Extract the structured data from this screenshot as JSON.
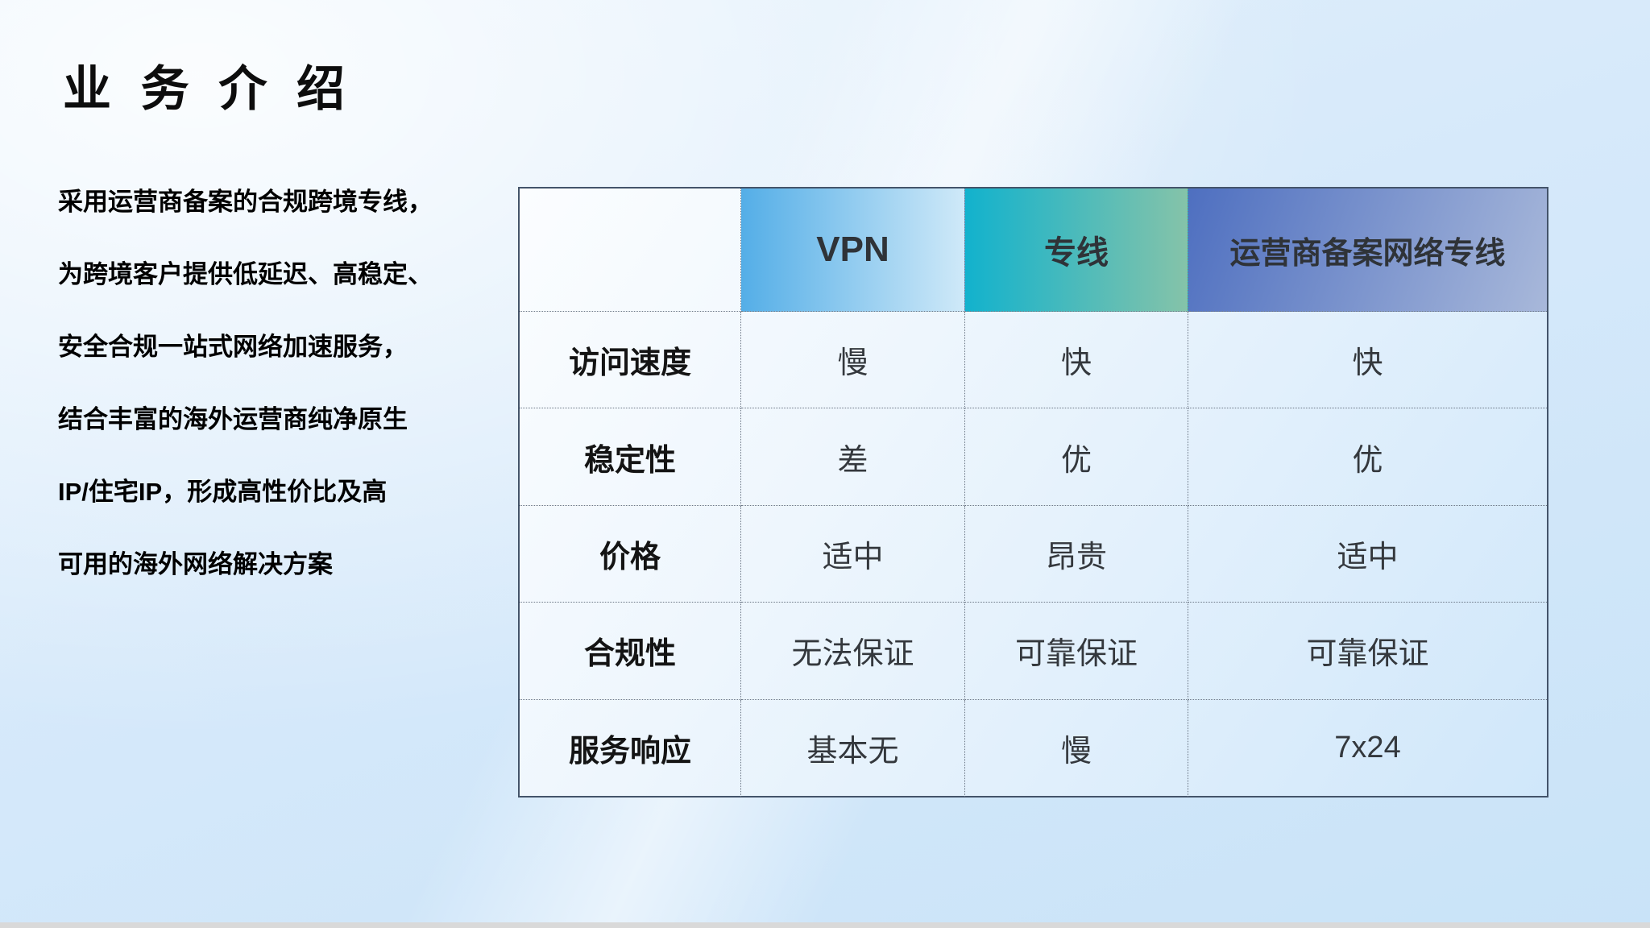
{
  "slide": {
    "title": "业 务 介 绍",
    "description_lines": [
      "采用运营商备案的合规跨境专线，",
      "为跨境客户提供低延迟、高稳定、",
      "安全合规一站式网络加速服务，",
      "结合丰富的海外运营商纯净原生",
      "IP/住宅IP，形成高性价比及高",
      "可用的海外网络解决方案"
    ]
  },
  "table": {
    "columns": [
      "",
      "VPN",
      "专线",
      "运营商备案网络专线"
    ],
    "rows": [
      {
        "label": "访问速度",
        "values": [
          "慢",
          "快",
          "快"
        ]
      },
      {
        "label": "稳定性",
        "values": [
          "差",
          "优",
          "优"
        ]
      },
      {
        "label": "价格",
        "values": [
          "适中",
          "昂贵",
          "适中"
        ]
      },
      {
        "label": "合规性",
        "values": [
          "无法保证",
          "可靠保证",
          "可靠保证"
        ]
      },
      {
        "label": "服务响应",
        "values": [
          "基本无",
          "慢",
          "7x24"
        ]
      }
    ],
    "colors": {
      "vpn_header_gradient": [
        "#54aee7",
        "#cfe9f8"
      ],
      "dedicated_line_header_gradient": [
        "#12b2cd",
        "#85c3a9"
      ],
      "carrier_header_gradient": [
        "#4e6fc0",
        "#a8b8da"
      ],
      "table_border": "#44546a",
      "slide_background": "#d6e9fa",
      "bottom_strip": "#d9d9d9"
    }
  }
}
